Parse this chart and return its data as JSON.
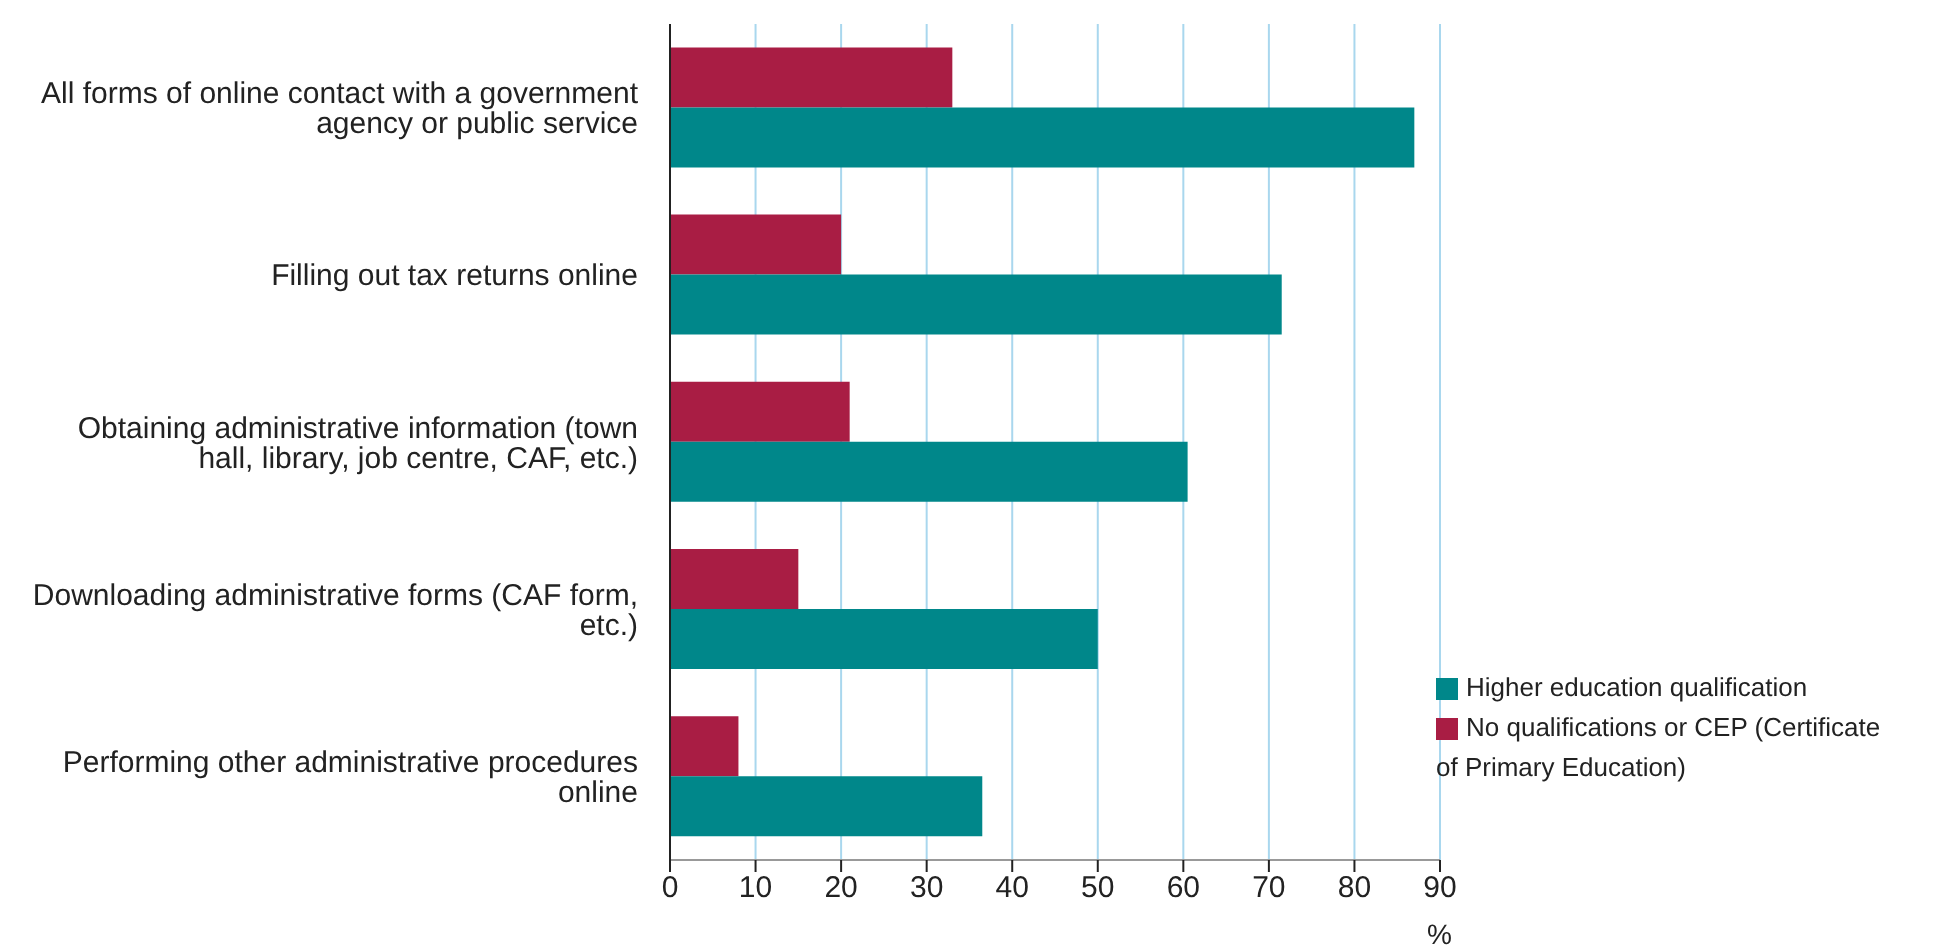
{
  "chart_data": {
    "type": "bar",
    "orientation": "horizontal",
    "xlabel": "%",
    "categories": [
      "All forms of online contact with a government agency or public service",
      "Filling out tax returns online",
      "Obtaining administrative information (town hall, library, job centre, CAF, etc.)",
      "Downloading administrative forms (CAF form, etc.)",
      "Performing other administrative procedures online"
    ],
    "series": [
      {
        "name": "No qualifications or CEP (Certificate of Primary Education)",
        "color": "#a91d44",
        "values": [
          33,
          20,
          21,
          15,
          8
        ]
      },
      {
        "name": "Higher education qualification",
        "color": "#00878a",
        "values": [
          87,
          71.5,
          60.5,
          50,
          36.5
        ]
      }
    ],
    "xlim": [
      0,
      90
    ],
    "xticks": [
      0,
      10,
      20,
      30,
      40,
      50,
      60,
      70,
      80,
      90
    ],
    "grid": "x",
    "legend": "bottom right"
  }
}
